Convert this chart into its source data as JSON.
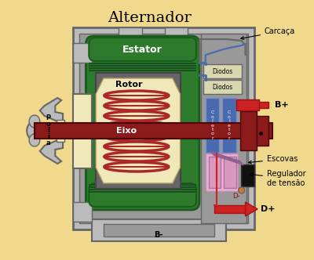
{
  "title": "Alternador",
  "bg_color": "#f0d98c",
  "labels": {
    "estator": "Estator",
    "rotor": "Rotor",
    "eixo": "Eixo",
    "carcaca": "Carcaça",
    "diodos1": "Diodos",
    "diodos2": "Diodos",
    "escovas": "Escovas",
    "regulador": "Regulador\nde tensão",
    "bplus": "B+",
    "bminus": "B-",
    "dplus": "D+",
    "dminus": "D-"
  },
  "colors": {
    "dark_red": "#7a1515",
    "green": "#2d7a2d",
    "dark_green": "#1a5c1a",
    "gray": "#999999",
    "dark_gray": "#666666",
    "light_gray": "#bbbbbb",
    "very_light_gray": "#cccccc",
    "blue": "#4a6ab0",
    "light_blue": "#7090d0",
    "pink": "#e8b0d0",
    "pink2": "#d898c0",
    "purple": "#906090",
    "cream": "#f0e8b8",
    "black": "#111111",
    "orange": "#cc7722",
    "red_wire": "#cc2222",
    "coil_red": "#aa2828",
    "bg": "#f0d98c",
    "shaft_red": "#8b1a1a"
  }
}
